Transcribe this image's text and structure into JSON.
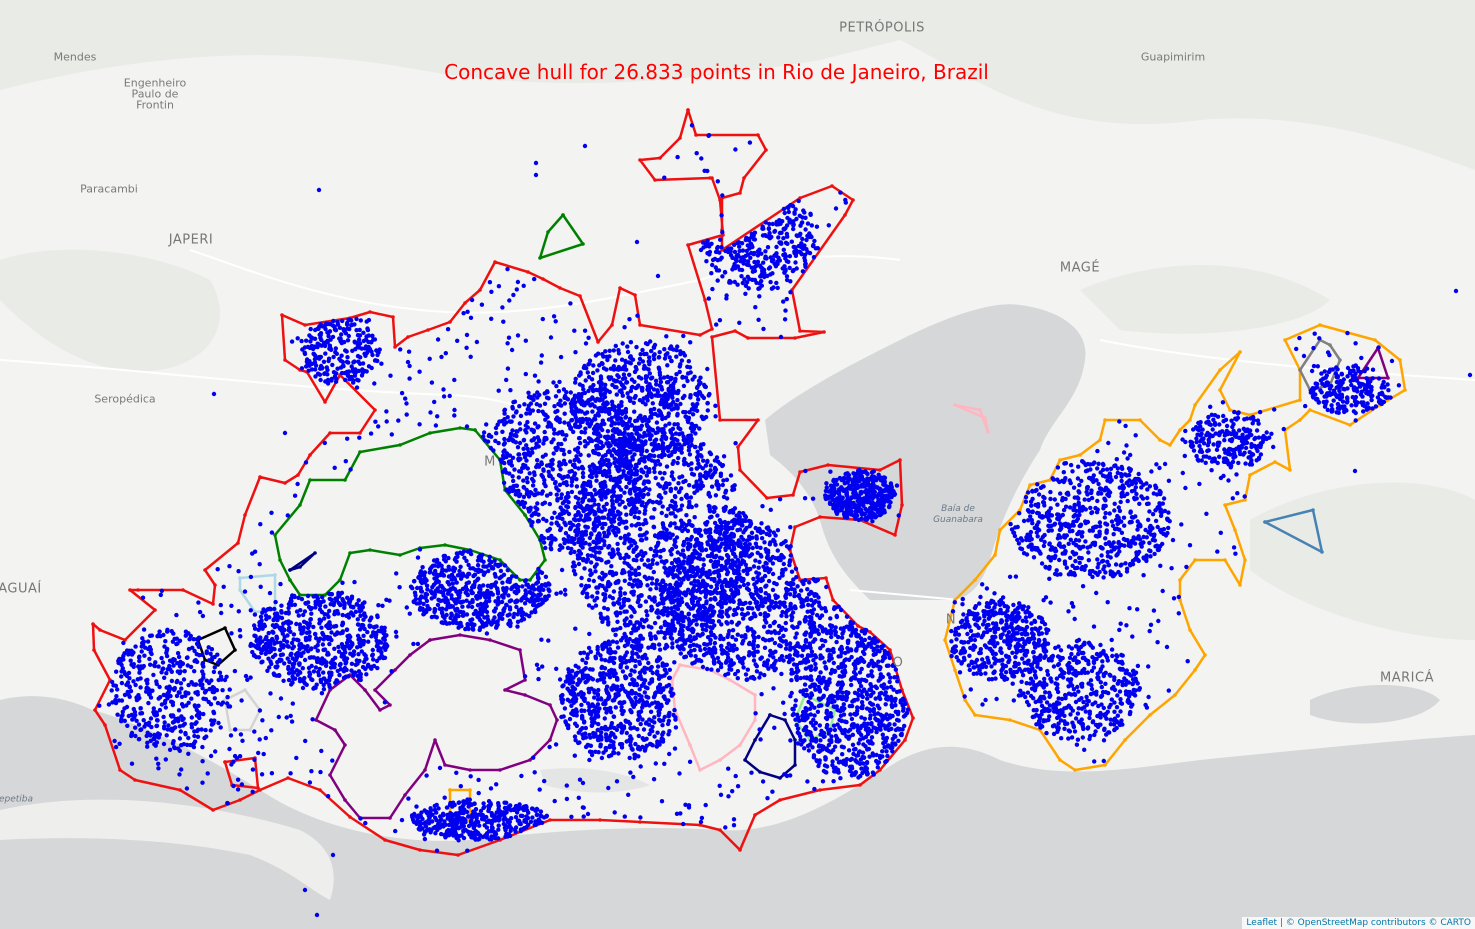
{
  "title": "Concave hull for 26.833 points in Rio de Janeiro, Brazil",
  "map": {
    "labels": [
      {
        "id": "mendes",
        "text": "Mendes",
        "kind": "town"
      },
      {
        "id": "engenheiro",
        "text": "Engenheiro\nPaulo de\nFrontin",
        "kind": "town"
      },
      {
        "id": "paracambi",
        "text": "Paracambi",
        "kind": "town"
      },
      {
        "id": "japeri",
        "text": "JAPERI",
        "kind": "city"
      },
      {
        "id": "seropedica",
        "text": "Seropédica",
        "kind": "town"
      },
      {
        "id": "itaguai",
        "text": "AGUAÍ",
        "kind": "city"
      },
      {
        "id": "sepetiba",
        "text": "epetiba",
        "kind": "water"
      },
      {
        "id": "petropolis",
        "text": "PETRÓPOLIS",
        "kind": "city"
      },
      {
        "id": "guapimirim",
        "text": "Guapimirim",
        "kind": "town"
      },
      {
        "id": "mage",
        "text": "MAGÉ",
        "kind": "city"
      },
      {
        "id": "guanabara",
        "text": "Baía de\nGuanabara",
        "kind": "water"
      },
      {
        "id": "marica",
        "text": "MARICÁ",
        "kind": "city"
      },
      {
        "id": "m_partial",
        "text": "M",
        "kind": "city"
      },
      {
        "id": "o_partial",
        "text": "O",
        "kind": "city"
      },
      {
        "id": "n_partial",
        "text": "N",
        "kind": "city"
      }
    ],
    "hull_colors": {
      "rio_main": "#ee1111",
      "niteroi": "#ffa500",
      "tijuca": "#008000",
      "pedra_branca": "#800080",
      "pink": "#ffb6c1",
      "navy": "#000080",
      "light_green": "#90ee90",
      "light_blue": "#add8e6",
      "black": "#000000",
      "light_gray": "#d3d3d3",
      "orange_small": "#ffa500",
      "gray": "#808080",
      "purple_small": "#800080",
      "teal": "#4682b4"
    },
    "point_color": "#0000ee",
    "attribution": "Leaflet | © OpenStreetMap contributors © CARTO"
  }
}
